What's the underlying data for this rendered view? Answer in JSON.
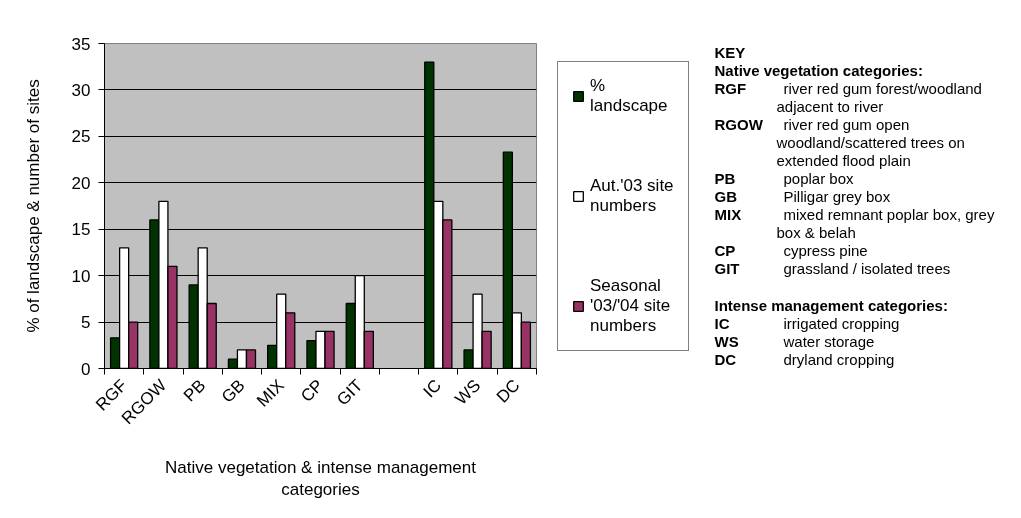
{
  "chart_data": {
    "type": "bar",
    "xlabel": "Native vegetation & intense management categories",
    "ylabel": "% of landscape & number of sites",
    "categories": [
      "RGF",
      "RGOW",
      "PB",
      "GB",
      "MIX",
      "CP",
      "GIT",
      null,
      "IC",
      "WS",
      "DC"
    ],
    "series": [
      {
        "name": "% landscape",
        "color": "#003300",
        "values": [
          3.3,
          16,
          9,
          1,
          2.5,
          3,
          7,
          null,
          33,
          2,
          23.3
        ]
      },
      {
        "name": "Aut.'03 site numbers",
        "color": "#ffffff",
        "values": [
          13,
          18,
          13,
          2,
          8,
          4,
          10,
          null,
          18,
          8,
          6
        ]
      },
      {
        "name": "Seasonal '03/'04 site numbers",
        "color": "#993366",
        "values": [
          5,
          11,
          7,
          2,
          6,
          4,
          4,
          null,
          16,
          4,
          5
        ]
      }
    ],
    "ylim": [
      0,
      35
    ],
    "yticks": [
      0,
      5,
      10,
      15,
      20,
      25,
      30,
      35
    ],
    "grid": "y",
    "legend": "right",
    "annotations": [
      "KEY",
      "Native vegetation categories:",
      "RGF",
      "river red gum forest/woodland adjacent to river",
      "RGOW",
      "river red gum open woodland/scattered trees on extended flood plain",
      "PB",
      "poplar box",
      "GB",
      "Pilligar grey box",
      "MIX",
      "mixed remnant poplar box, grey box & belah",
      "CP",
      "cypress pine",
      "GIT",
      "grassland / isolated trees",
      "Intense management categories:",
      "IC",
      "irrigated cropping",
      "WS",
      "water storage",
      "DC",
      "dryland cropping"
    ]
  }
}
